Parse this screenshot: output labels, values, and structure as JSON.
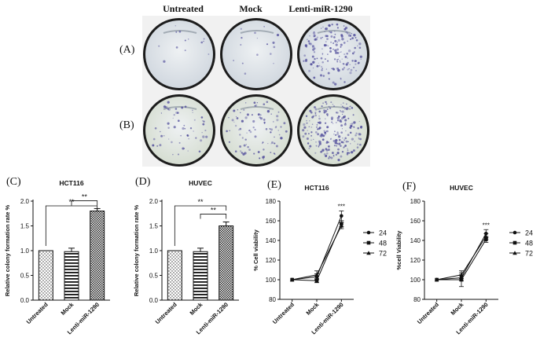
{
  "plates": {
    "column_headers": [
      "Untreated",
      "Mock",
      "Lenti-miR-1290"
    ],
    "row_labels": [
      "(A)",
      "(B)"
    ],
    "rows": [
      {
        "tone": "#cfd6de",
        "density": [
          0.05,
          0.06,
          0.65
        ]
      },
      {
        "tone": "#d4dccf",
        "density": [
          0.22,
          0.35,
          0.85
        ]
      }
    ],
    "dish_colors": {
      "rim": "#1c1c1c",
      "colony": "#4e4a9a"
    }
  },
  "panels": [
    {
      "tag": "(C)",
      "title": "HCT116",
      "ylabel": "Relative colony formation rate %",
      "yticks": [
        "0.0",
        "0.5",
        "1.0",
        "1.5",
        "2.0"
      ]
    },
    {
      "tag": "(D)",
      "title": "HUVEC",
      "ylabel": "Relative colony formation rate %",
      "yticks": [
        "0.0",
        "0.5",
        "1.0",
        "1.5",
        "2.0"
      ]
    },
    {
      "tag": "(E)",
      "title": "HCT116",
      "ylabel": "% Cell viability",
      "yticks": [
        "80",
        "100",
        "120",
        "140",
        "160",
        "180"
      ]
    },
    {
      "tag": "(F)",
      "title": "HUVEC",
      "ylabel": "%cell Viability",
      "yticks": [
        "80",
        "100",
        "120",
        "140",
        "160",
        "180"
      ]
    }
  ],
  "chart_data": [
    {
      "type": "bar",
      "title": "HCT116",
      "ylabel": "Relative colony formation rate %",
      "categories": [
        "Untreated",
        "Mock",
        "Lenti-miR-1290"
      ],
      "values": [
        1.0,
        0.98,
        1.8
      ],
      "errors": [
        0,
        0.07,
        0.05
      ],
      "patterns": [
        "dots",
        "hlines",
        "checker"
      ],
      "ylim": [
        0,
        2.0
      ],
      "significance": [
        {
          "from": 0,
          "to": 2,
          "label": "**"
        },
        {
          "from": 1,
          "to": 2,
          "label": "**"
        }
      ]
    },
    {
      "type": "bar",
      "title": "HUVEC",
      "ylabel": "Relative colony formation rate %",
      "categories": [
        "Untreated",
        "Mock",
        "Lenti-miR-1290"
      ],
      "values": [
        1.0,
        0.98,
        1.5
      ],
      "errors": [
        0,
        0.07,
        0.08
      ],
      "patterns": [
        "dots",
        "hlines",
        "checker"
      ],
      "ylim": [
        0,
        2.0
      ],
      "significance": [
        {
          "from": 0,
          "to": 2,
          "label": "**"
        },
        {
          "from": 1,
          "to": 2,
          "label": "**"
        }
      ]
    },
    {
      "type": "line",
      "title": "HCT116",
      "ylabel": "% Cell viability",
      "categories": [
        "Untreated",
        "Mock",
        "Lenti-miR-1290"
      ],
      "ylim": [
        80,
        180
      ],
      "series": [
        {
          "name": "24",
          "marker": "circle",
          "values": [
            100,
            103,
            165
          ],
          "errors": [
            0,
            3,
            5
          ]
        },
        {
          "name": "48",
          "marker": "square",
          "values": [
            100,
            99,
            157
          ],
          "errors": [
            0,
            2,
            3
          ]
        },
        {
          "name": "72",
          "marker": "triangle",
          "values": [
            100,
            105,
            155
          ],
          "errors": [
            0,
            4,
            3
          ]
        }
      ],
      "annotations": [
        {
          "category": 2,
          "label": "***"
        }
      ]
    },
    {
      "type": "line",
      "title": "HUVEC",
      "ylabel": "%cell Viability",
      "categories": [
        "Untreated",
        "Mock",
        "Lenti-miR-1290"
      ],
      "ylim": [
        80,
        180
      ],
      "series": [
        {
          "name": "24",
          "marker": "circle",
          "values": [
            100,
            102,
            147
          ],
          "errors": [
            0,
            3,
            4
          ]
        },
        {
          "name": "48",
          "marker": "square",
          "values": [
            100,
            100,
            141
          ],
          "errors": [
            0,
            7,
            3
          ]
        },
        {
          "name": "72",
          "marker": "triangle",
          "values": [
            100,
            105,
            144
          ],
          "errors": [
            0,
            4,
            3
          ]
        }
      ],
      "annotations": [
        {
          "category": 2,
          "label": "***"
        }
      ]
    }
  ]
}
